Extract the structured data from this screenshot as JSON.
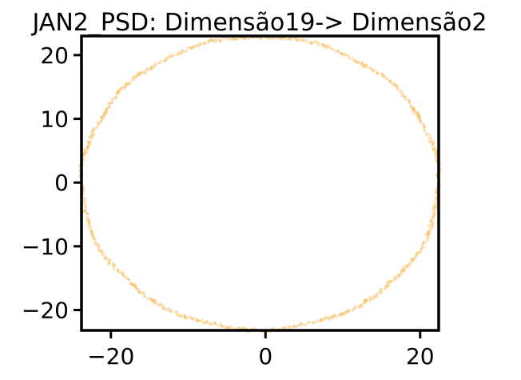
{
  "chart_data": {
    "type": "scatter",
    "title": "JAN2_PSD: Dimensão19-> Dimensão2",
    "xlabel": "",
    "ylabel": "",
    "xlim": [
      -23.8,
      22.4
    ],
    "ylim": [
      -23.2,
      23.0
    ],
    "x_ticks": [
      -20,
      0,
      20
    ],
    "y_ticks": [
      20,
      10,
      0,
      -10,
      -20
    ],
    "x_tick_labels": [
      "−20",
      "0",
      "20"
    ],
    "y_tick_labels": [
      "20",
      "10",
      "0",
      "−10",
      "−20"
    ],
    "grid": false,
    "legend": "none",
    "point_color": "#f5b54a",
    "series": [
      {
        "shape": "ring",
        "center": [
          -0.7,
          -0.1
        ],
        "radius_x": 23.1,
        "radius_y": 23.0,
        "point_count": 560
      }
    ]
  }
}
